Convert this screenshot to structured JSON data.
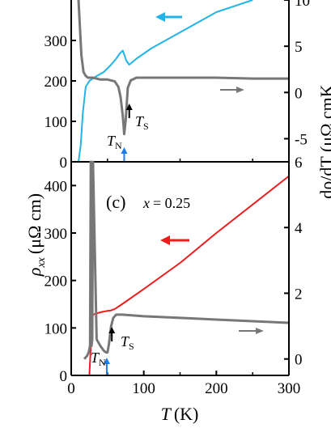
{
  "chart_data": [
    {
      "type": "line",
      "panel_label": "",
      "xlim": [
        0,
        300
      ],
      "ylim_left": [
        0,
        400
      ],
      "ylim_right": [
        -7.5,
        10
      ],
      "left_ticks": [
        "0",
        "100",
        "200",
        "300"
      ],
      "right_ticks": [
        "-5",
        "0",
        "5",
        "10"
      ],
      "series": [
        {
          "axis": "left",
          "color": "#22b4e8",
          "x": [
            10,
            13,
            16,
            20,
            25,
            35,
            45,
            55,
            62,
            67,
            71,
            73,
            76,
            80,
            90,
            110,
            150,
            200,
            250
          ],
          "y": [
            0,
            40,
            120,
            185,
            200,
            212,
            222,
            240,
            255,
            268,
            275,
            265,
            250,
            240,
            255,
            280,
            320,
            370,
            420
          ]
        },
        {
          "axis": "right",
          "color": "#777777",
          "x": [
            10,
            12,
            14,
            17,
            20,
            23,
            30,
            40,
            50,
            60,
            65,
            68,
            71,
            73,
            75,
            78,
            82,
            90,
            110,
            150,
            200,
            250,
            300
          ],
          "y": [
            10,
            7,
            4,
            2.2,
            1.8,
            1.6,
            1.6,
            1.4,
            1.4,
            1.2,
            0.6,
            -0.5,
            -2.5,
            -4.5,
            -3,
            0.5,
            1.3,
            1.6,
            1.6,
            1.6,
            1.6,
            1.5,
            1.5
          ]
        }
      ],
      "annotations": {
        "tn": "T",
        "tn_sub": "N",
        "ts": "T",
        "ts_sub": "S",
        "tn_x": 73,
        "ts_x": 80
      }
    },
    {
      "type": "line",
      "panel_label": "(c)",
      "composition_var": "x",
      "composition_value": "= 0.25",
      "xlim": [
        0,
        300
      ],
      "ylim_left": [
        0,
        450
      ],
      "ylim_right": [
        -0.5,
        6
      ],
      "left_ticks": [
        "0",
        "100",
        "200",
        "300",
        "400"
      ],
      "right_ticks": [
        "0",
        "2",
        "4",
        "6"
      ],
      "x_ticks": [
        "0",
        "100",
        "200",
        "300"
      ],
      "series": [
        {
          "axis": "left",
          "color": "#ee1c1c",
          "x": [
            25,
            27,
            29,
            30,
            40,
            50,
            55,
            60,
            70,
            100,
            150,
            200,
            250,
            300
          ],
          "y": [
            0,
            60,
            120,
            128,
            133,
            136,
            137,
            140,
            150,
            182,
            237,
            300,
            360,
            420
          ]
        },
        {
          "axis": "right",
          "color": "#777777",
          "x": [
            18,
            20,
            22,
            24,
            26,
            27,
            28,
            29,
            30,
            35,
            40,
            45,
            48,
            50,
            52,
            55,
            58,
            62,
            70,
            100,
            150,
            200,
            250,
            300
          ],
          "y": [
            0,
            0.05,
            0.1,
            0.2,
            0.4,
            6,
            0.4,
            0.6,
            6,
            0.6,
            0.4,
            0.25,
            0.2,
            0.2,
            0.45,
            1.0,
            1.25,
            1.35,
            1.35,
            1.3,
            1.25,
            1.2,
            1.15,
            1.1
          ]
        }
      ],
      "annotations": {
        "tn": "T",
        "tn_sub": "N",
        "ts": "T",
        "ts_sub": "S",
        "tn_x": 49,
        "ts_x": 56
      }
    }
  ],
  "labels": {
    "ylabel_rho": "ρ",
    "ylabel_rho_sub": "xx",
    "ylabel_unit": "(μΩ cm)",
    "right_label_clip": "dρ/dT (μΩ cmK",
    "xlabel_T": "T",
    "xlabel_unit": "(K)"
  }
}
